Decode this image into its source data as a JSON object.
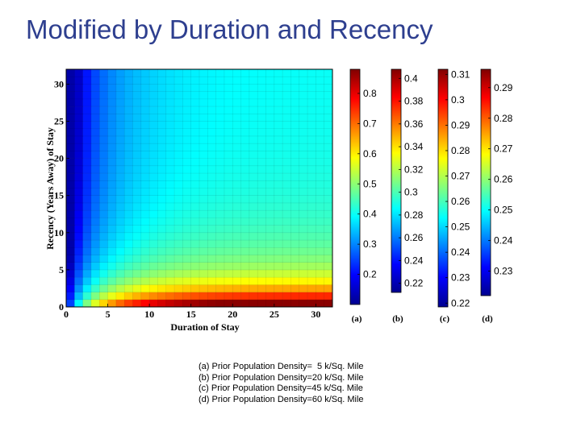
{
  "title": "Modified by Duration and Recency",
  "chart_data": {
    "type": "heatmap",
    "xlabel": "Duration of Stay",
    "ylabel": "Recency (Years Away) of Stay",
    "xlim": [
      0,
      32
    ],
    "ylim": [
      0,
      32
    ],
    "xticks": [
      0,
      5,
      10,
      15,
      20,
      25,
      30
    ],
    "yticks": [
      0,
      5,
      10,
      15,
      20,
      25,
      30
    ],
    "colorbars": [
      {
        "panel": "(a)",
        "min": 0.1,
        "max": 0.88,
        "ticks": [
          0.8,
          0.7,
          0.6,
          0.5,
          0.4,
          0.3,
          0.2
        ]
      },
      {
        "panel": "(b)",
        "min": 0.212,
        "max": 0.408,
        "ticks": [
          0.4,
          0.38,
          0.36,
          0.34,
          0.32,
          0.3,
          0.28,
          0.26,
          0.24,
          0.22
        ]
      },
      {
        "panel": "(c)",
        "min": 0.2185,
        "max": 0.312,
        "ticks": [
          0.31,
          0.3,
          0.29,
          0.28,
          0.27,
          0.26,
          0.25,
          0.24,
          0.23,
          0.22
        ]
      },
      {
        "panel": "(d)",
        "min": 0.222,
        "max": 0.296,
        "ticks": [
          0.29,
          0.28,
          0.27,
          0.26,
          0.25,
          0.24,
          0.23
        ]
      }
    ],
    "legend": [
      "(a) Prior Population Density=  5 k/Sq. Mile",
      "(b) Prior Population Density=20 k/Sq. Mile",
      "(c) Prior Population Density=45 k/Sq. Mile",
      "(d) Prior Population Density=60 k/Sq. Mile"
    ]
  }
}
